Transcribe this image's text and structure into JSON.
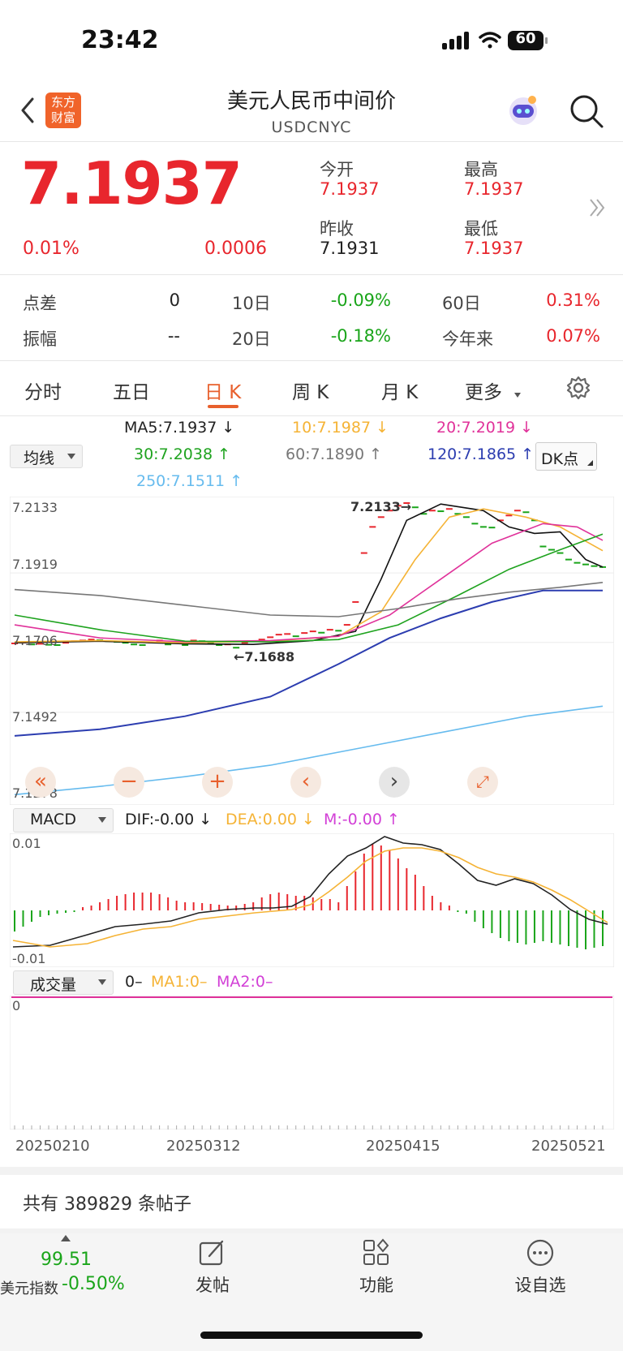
{
  "status": {
    "time": "23:42",
    "battery": "60"
  },
  "header": {
    "logo_line1": "东方",
    "logo_line2": "财富",
    "title": "美元人民币中间价",
    "subtitle": "USDCNYC"
  },
  "quote": {
    "price": "7.1937",
    "change_pct": "0.01%",
    "change": "0.0006",
    "open_label": "今开",
    "open": "7.1937",
    "high_label": "最高",
    "high": "7.1937",
    "prev_label": "昨收",
    "prev": "7.1931",
    "low_label": "最低",
    "low": "7.1937"
  },
  "stats": {
    "spread_label": "点差",
    "spread": "0",
    "d10_label": "10日",
    "d10": "-0.09%",
    "d60_label": "60日",
    "d60": "0.31%",
    "amp_label": "振幅",
    "amp": "--",
    "d20_label": "20日",
    "d20": "-0.18%",
    "ytd_label": "今年来",
    "ytd": "0.07%"
  },
  "tabs": [
    "分时",
    "五日",
    "日 K",
    "周 K",
    "月 K",
    "更多",
    "settings"
  ],
  "ma_bar": {
    "selector": "均线",
    "ma5": "MA5:7.1937 ↓",
    "ma10": "10:7.1987 ↓",
    "ma20": "20:7.2019 ↓",
    "ma30": "30:7.2038 ↑",
    "ma60": "60:7.1890 ↑",
    "ma120": "120:7.1865 ↑",
    "ma250": "250:7.1511 ↑",
    "dk": "DK点"
  },
  "kline": {
    "y_labels": [
      "7.2133",
      "7.1919",
      "7.1706",
      "7.1492",
      "7.1278"
    ],
    "high_tag": "7.2133",
    "low_tag": "7.1688"
  },
  "macd_bar": {
    "selector": "MACD",
    "dif": "DIF:-0.00 ↓",
    "dea": "DEA:0.00 ↓",
    "m": "M:-0.00 ↑",
    "y_top": "0.01",
    "y_bottom": "-0.01"
  },
  "vol_bar": {
    "selector": "成交量",
    "v": "0–",
    "ma1": "MA1:0–",
    "ma2": "MA2:0–",
    "y_top": "0"
  },
  "dates": [
    "20250210",
    "20250312",
    "20250415",
    "20250521"
  ],
  "posts": "共有 389829 条帖子",
  "bottom_nav": {
    "index_value": "99.51",
    "index_name": "美元指数",
    "index_change": "-0.50%",
    "post": "发帖",
    "func": "功能",
    "watch": "设自选"
  },
  "colors": {
    "up": "#e8262d",
    "down": "#1aa51a",
    "ma5": "#111111",
    "ma10": "#f5b335",
    "ma20": "#e0329a",
    "ma30": "#1fa31f",
    "ma60": "#777777",
    "ma120": "#2c3db0",
    "ma250": "#66bbee"
  }
}
